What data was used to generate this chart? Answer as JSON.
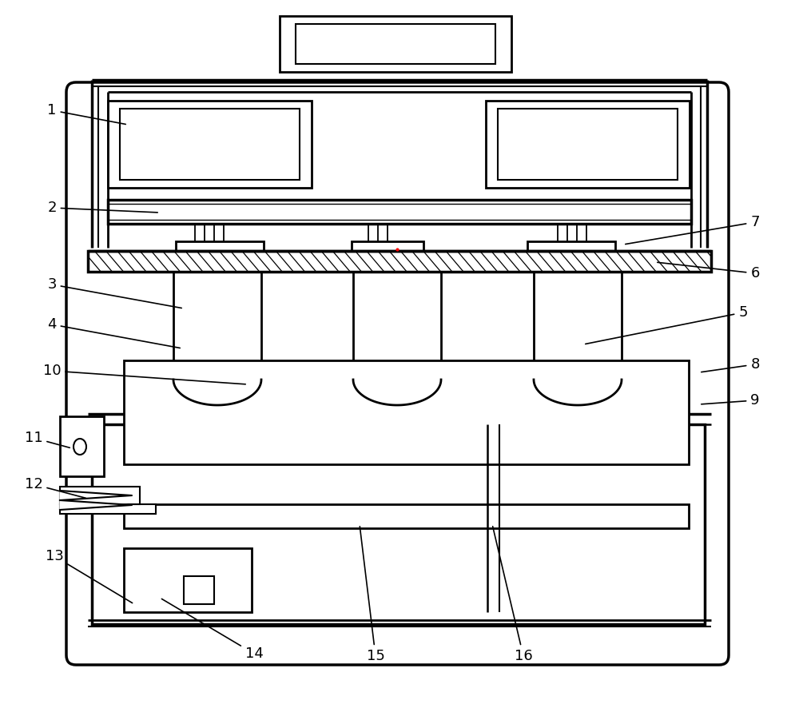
{
  "bg_color": "#ffffff",
  "line_color": "#000000",
  "lw_main": 2.0,
  "lw_thin": 1.3,
  "label_fontsize": 13
}
